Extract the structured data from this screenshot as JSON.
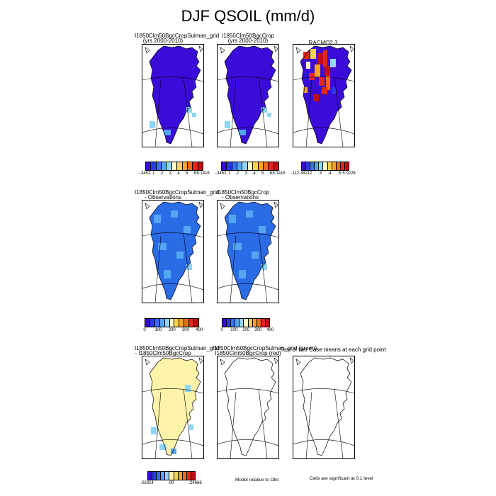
{
  "title": "DJF QSOIL (mm/d)",
  "panels": {
    "p1": {
      "line1": "I1850Clm50BgcCropSulman_grid",
      "line2": "(yrs 2000-2010)"
    },
    "p2": {
      "line1": "I1850Clm50BgcCrop",
      "line2": "(yrs 2000-2010)"
    },
    "p3": {
      "line1": "RACMO2.3",
      "line2": ""
    },
    "p4": {
      "line1": "I1850Clm50BgcCropSulman_grid",
      "line2": "- Observations"
    },
    "p5": {
      "line1": "I1850Clm50BgcCrop",
      "line2": "- Observations"
    },
    "p6": {
      "line1": "I1850Clm50BgcCropSulman_grid",
      "line2": "- I1850Clm50BgcCrop"
    },
    "p7": {
      "line1": "I1850Clm50BgcCropSulman_grid (green)",
      "line2": "I1850Clm50BgcCrop (red)"
    },
    "p8": {
      "line1": "Test of two Case means at each grid point",
      "line2": ""
    }
  },
  "colorbars": {
    "cb1": {
      "labels": [
        "-.3452",
        ".1",
        ".2",
        ".3",
        ".4",
        ".5",
        ".6",
        "8.1416"
      ]
    },
    "cb2": {
      "labels": [
        "-.3452",
        ".1",
        ".2",
        ".3",
        ".4",
        ".5",
        ".6",
        "8.1416"
      ]
    },
    "cb3": {
      "labels": [
        "-112.3821",
        ".2",
        ".3",
        ".4",
        ".5",
        "5.0228"
      ]
    },
    "cb4": {
      "labels": [
        "0",
        "100",
        "200",
        "300",
        "400"
      ]
    },
    "cb5": {
      "labels": [
        "0",
        "100",
        "200",
        "300",
        "400"
      ]
    },
    "cb6": {
      "labels": [
        ".03314",
        ".00",
        ".24868"
      ]
    }
  },
  "notes": {
    "model_rel": "Model relative to Obs",
    "cells_sig": "Cells are significant at 0.1 level"
  },
  "palettes": {
    "qsoil": [
      "#3a0bd9",
      "#2a3bea",
      "#3b6ef0",
      "#55a6f2",
      "#8fd5f5",
      "#fdfbc2",
      "#f9d24e",
      "#f9a327",
      "#f26a1c",
      "#e8241a",
      "#bf0f13"
    ],
    "diff": [
      "#3a0bd9",
      "#2a3bea",
      "#3b6ef0",
      "#55a6f2",
      "#8fd5f5",
      "#fdf3a9",
      "#f9d24e",
      "#f9a327",
      "#f26a1c",
      "#e8241a",
      "#bf0f13"
    ]
  },
  "chart_data": [
    {
      "type": "heatmap",
      "title": "I1850Clm50BgcCropSulman_grid (yrs 2000-2010)",
      "dominant_color": "#3a0bd9",
      "colorbar": [
        "-.3452",
        ".1",
        ".2",
        ".3",
        ".4",
        ".5",
        ".6",
        "8.1416"
      ]
    },
    {
      "type": "heatmap",
      "title": "I1850Clm50BgcCrop (yrs 2000-2010)",
      "dominant_color": "#3a0bd9",
      "colorbar": [
        "-.3452",
        ".1",
        ".2",
        ".3",
        ".4",
        ".5",
        ".6",
        "8.1416"
      ]
    },
    {
      "type": "heatmap",
      "title": "RACMO2.3",
      "dominant_color": "#3a0bd9",
      "colorbar": [
        "-112.3821",
        ".2",
        ".3",
        ".4",
        ".5",
        "5.0228"
      ]
    },
    {
      "type": "heatmap",
      "title": "I1850Clm50BgcCropSulman_grid - Observations",
      "dominant_color": "#2a6be6",
      "colorbar": [
        "0",
        "100",
        "200",
        "300",
        "400"
      ]
    },
    {
      "type": "heatmap",
      "title": "I1850Clm50BgcCrop - Observations",
      "dominant_color": "#2a6be6",
      "colorbar": [
        "0",
        "100",
        "200",
        "300",
        "400"
      ]
    },
    {
      "type": "heatmap",
      "title": "I1850Clm50BgcCropSulman_grid - I1850Clm50BgcCrop",
      "dominant_color": "#fdf3a9",
      "colorbar": [
        ".03314",
        ".00",
        ".24868"
      ]
    }
  ]
}
